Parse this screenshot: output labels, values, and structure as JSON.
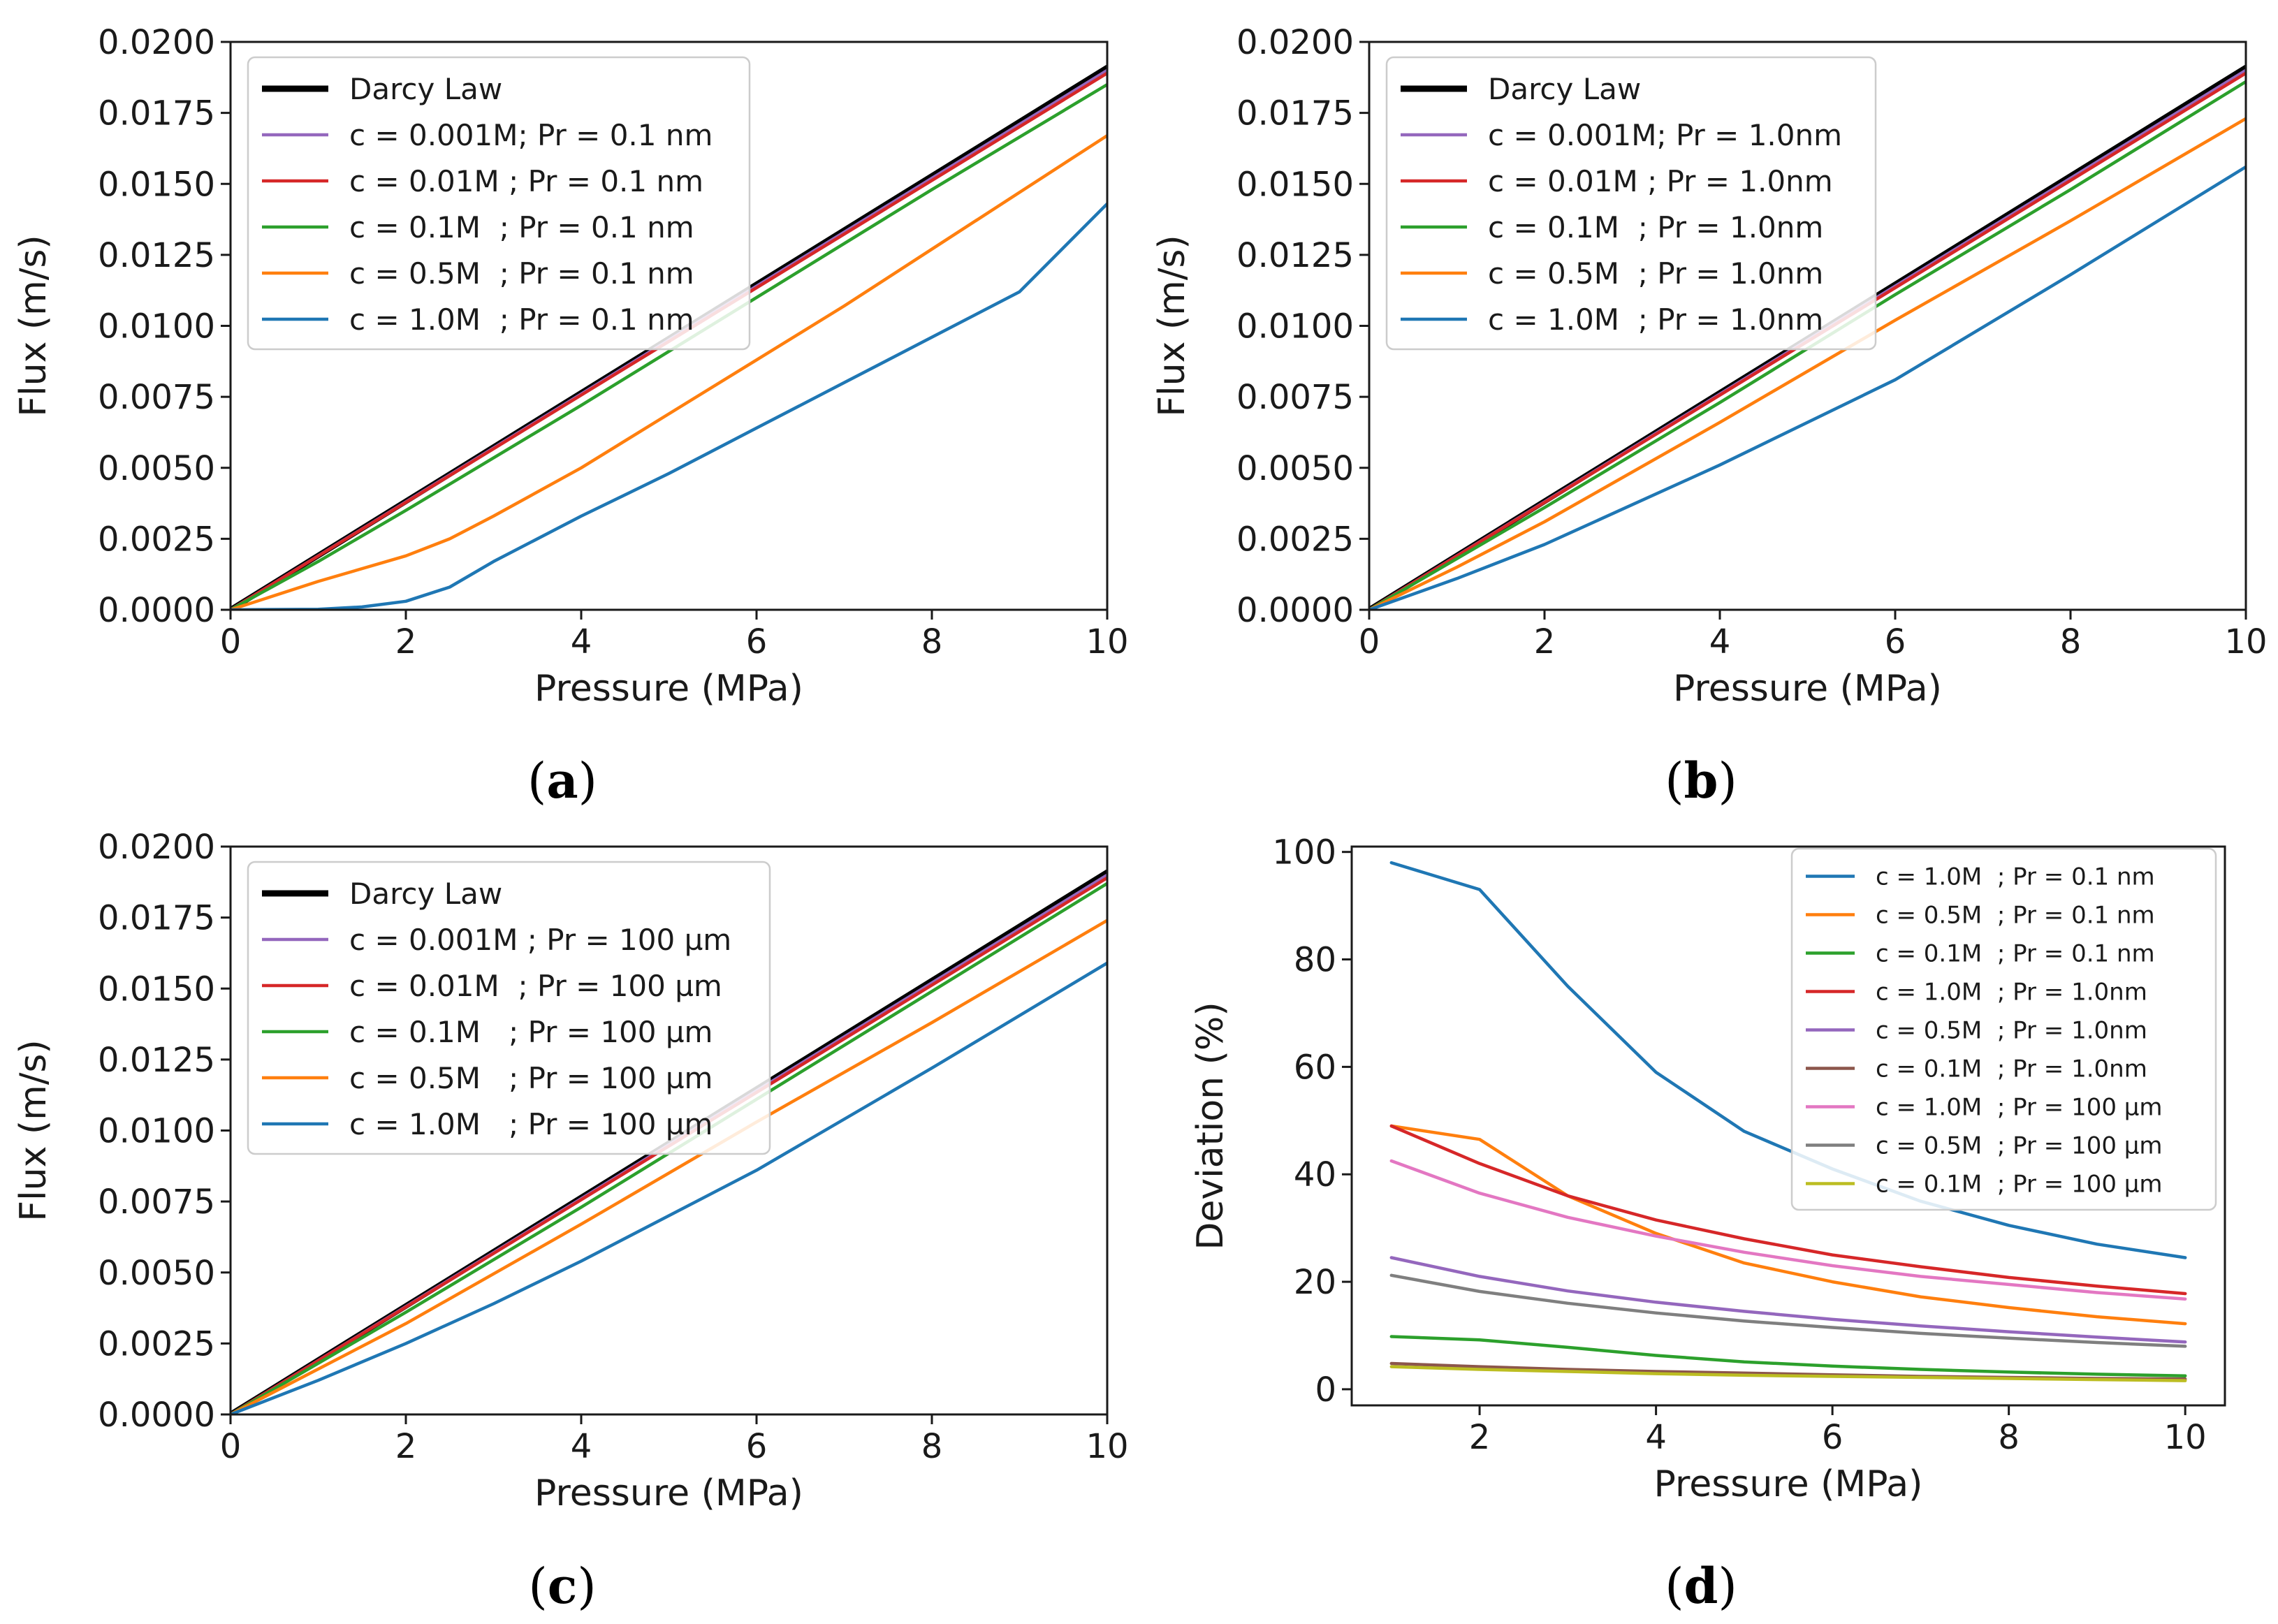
{
  "chart_data": [
    {
      "id": "a",
      "panel_label": "(a)",
      "type": "line",
      "xlabel": "Pressure (MPa)",
      "ylabel": "Flux (m/s)",
      "xlim": [
        0,
        10
      ],
      "ylim": [
        0,
        0.02
      ],
      "xticks": [
        0,
        2,
        4,
        6,
        8,
        10
      ],
      "xtick_labels": [
        "0",
        "2",
        "4",
        "6",
        "8",
        "10"
      ],
      "yticks": [
        0,
        0.0025,
        0.005,
        0.0075,
        0.01,
        0.0125,
        0.015,
        0.0175,
        0.02
      ],
      "ytick_labels": [
        "0.0000",
        "0.0025",
        "0.0050",
        "0.0075",
        "0.0100",
        "0.0125",
        "0.0150",
        "0.0175",
        "0.0200"
      ],
      "legend_position": "top-left",
      "series": [
        {
          "name": "Darcy Law",
          "color": "#000000",
          "bold": true,
          "x": [
            0,
            10
          ],
          "y": [
            0,
            0.0191
          ]
        },
        {
          "name": "c = 0.001M; Pr = 0.1 nm",
          "color": "#9467bd",
          "x": [
            0,
            10
          ],
          "y": [
            0,
            0.019
          ]
        },
        {
          "name": "c = 0.01M ; Pr = 0.1 nm",
          "color": "#d62728",
          "x": [
            0,
            10
          ],
          "y": [
            0,
            0.0189
          ]
        },
        {
          "name": "c = 0.1M  ; Pr = 0.1 nm",
          "color": "#2ca02c",
          "x": [
            0,
            1,
            2,
            4,
            6,
            8,
            10
          ],
          "y": [
            0,
            0.0017,
            0.0035,
            0.0072,
            0.011,
            0.0148,
            0.0185
          ]
        },
        {
          "name": "c = 0.5M  ; Pr = 0.1 nm",
          "color": "#ff7f0e",
          "x": [
            0,
            1,
            2,
            2.5,
            3,
            4,
            5,
            6,
            7,
            8,
            9,
            10
          ],
          "y": [
            0,
            0.001,
            0.0019,
            0.0025,
            0.0033,
            0.005,
            0.0069,
            0.0088,
            0.0107,
            0.0127,
            0.0147,
            0.0167
          ]
        },
        {
          "name": "c = 1.0M  ; Pr = 0.1 nm",
          "color": "#1f77b4",
          "x": [
            0,
            1,
            1.5,
            2,
            2.5,
            3,
            4,
            5,
            6,
            7,
            8,
            9,
            10
          ],
          "y": [
            0,
            2e-05,
            0.0001,
            0.0003,
            0.0008,
            0.0017,
            0.0033,
            0.0048,
            0.0064,
            0.008,
            0.0096,
            0.0112,
            0.0143
          ]
        }
      ]
    },
    {
      "id": "b",
      "panel_label": "(b)",
      "type": "line",
      "xlabel": "Pressure (MPa)",
      "ylabel": "Flux (m/s)",
      "xlim": [
        0,
        10
      ],
      "ylim": [
        0,
        0.02
      ],
      "xticks": [
        0,
        2,
        4,
        6,
        8,
        10
      ],
      "xtick_labels": [
        "0",
        "2",
        "4",
        "6",
        "8",
        "10"
      ],
      "yticks": [
        0,
        0.0025,
        0.005,
        0.0075,
        0.01,
        0.0125,
        0.015,
        0.0175,
        0.02
      ],
      "ytick_labels": [
        "0.0000",
        "0.0025",
        "0.0050",
        "0.0075",
        "0.0100",
        "0.0125",
        "0.0150",
        "0.0175",
        "0.0200"
      ],
      "legend_position": "top-left",
      "series": [
        {
          "name": "Darcy Law",
          "color": "#000000",
          "bold": true,
          "x": [
            0,
            10
          ],
          "y": [
            0,
            0.0191
          ]
        },
        {
          "name": "c = 0.001M; Pr = 1.0nm",
          "color": "#9467bd",
          "x": [
            0,
            10
          ],
          "y": [
            0,
            0.019
          ]
        },
        {
          "name": "c = 0.01M ; Pr = 1.0nm",
          "color": "#d62728",
          "x": [
            0,
            10
          ],
          "y": [
            0,
            0.0189
          ]
        },
        {
          "name": "c = 0.1M  ; Pr = 1.0nm",
          "color": "#2ca02c",
          "x": [
            0,
            2,
            4,
            6,
            8,
            10
          ],
          "y": [
            0,
            0.0036,
            0.0073,
            0.0111,
            0.0148,
            0.0186
          ]
        },
        {
          "name": "c = 0.5M  ; Pr = 1.0nm",
          "color": "#ff7f0e",
          "x": [
            0,
            1,
            2,
            4,
            6,
            8,
            10
          ],
          "y": [
            0,
            0.0015,
            0.0031,
            0.0066,
            0.0102,
            0.0137,
            0.0173
          ]
        },
        {
          "name": "c = 1.0M  ; Pr = 1.0nm",
          "color": "#1f77b4",
          "x": [
            0,
            1,
            2,
            3,
            4,
            6,
            8,
            10
          ],
          "y": [
            0,
            0.0011,
            0.0023,
            0.0037,
            0.0051,
            0.0081,
            0.0118,
            0.0156
          ]
        }
      ]
    },
    {
      "id": "c",
      "panel_label": "(c)",
      "type": "line",
      "xlabel": "Pressure (MPa)",
      "ylabel": "Flux (m/s)",
      "xlim": [
        0,
        10
      ],
      "ylim": [
        0,
        0.02
      ],
      "xticks": [
        0,
        2,
        4,
        6,
        8,
        10
      ],
      "xtick_labels": [
        "0",
        "2",
        "4",
        "6",
        "8",
        "10"
      ],
      "yticks": [
        0,
        0.0025,
        0.005,
        0.0075,
        0.01,
        0.0125,
        0.015,
        0.0175,
        0.02
      ],
      "ytick_labels": [
        "0.0000",
        "0.0025",
        "0.0050",
        "0.0075",
        "0.0100",
        "0.0125",
        "0.0150",
        "0.0175",
        "0.0200"
      ],
      "legend_position": "top-left",
      "series": [
        {
          "name": "Darcy Law",
          "color": "#000000",
          "bold": true,
          "x": [
            0,
            10
          ],
          "y": [
            0,
            0.0191
          ]
        },
        {
          "name": "c = 0.001M ; Pr = 100 µm",
          "color": "#9467bd",
          "x": [
            0,
            10
          ],
          "y": [
            0,
            0.019
          ]
        },
        {
          "name": "c = 0.01M  ; Pr = 100 µm",
          "color": "#d62728",
          "x": [
            0,
            10
          ],
          "y": [
            0,
            0.0189
          ]
        },
        {
          "name": "c = 0.1M   ; Pr = 100 µm",
          "color": "#2ca02c",
          "x": [
            0,
            2,
            4,
            6,
            8,
            10
          ],
          "y": [
            0,
            0.0036,
            0.0073,
            0.0111,
            0.0149,
            0.0187
          ]
        },
        {
          "name": "c = 0.5M   ; Pr = 100 µm",
          "color": "#ff7f0e",
          "x": [
            0,
            1,
            2,
            4,
            6,
            8,
            10
          ],
          "y": [
            0,
            0.0016,
            0.0032,
            0.0067,
            0.0103,
            0.0138,
            0.0174
          ]
        },
        {
          "name": "c = 1.0M   ; Pr = 100 µm",
          "color": "#1f77b4",
          "x": [
            0,
            1,
            2,
            3,
            4,
            6,
            8,
            10
          ],
          "y": [
            0,
            0.0012,
            0.0025,
            0.0039,
            0.0054,
            0.0086,
            0.0122,
            0.0159
          ]
        }
      ]
    },
    {
      "id": "d",
      "panel_label": "(d)",
      "type": "line",
      "xlabel": "Pressure (MPa)",
      "ylabel": "Deviation (%)",
      "xlim": [
        0.55,
        10.45
      ],
      "ylim": [
        -3,
        101
      ],
      "xticks": [
        2,
        4,
        6,
        8,
        10
      ],
      "xtick_labels": [
        "2",
        "4",
        "6",
        "8",
        "10"
      ],
      "yticks": [
        0,
        20,
        40,
        60,
        80,
        100
      ],
      "ytick_labels": [
        "0",
        "20",
        "40",
        "60",
        "80",
        "100"
      ],
      "legend_position": "top-right",
      "series": [
        {
          "name": "c = 1.0M  ; Pr = 0.1 nm",
          "color": "#1f77b4",
          "x": [
            1,
            2,
            3,
            4,
            5,
            6,
            7,
            8,
            9,
            10
          ],
          "y": [
            98,
            93,
            75,
            59,
            48,
            41,
            35,
            30.5,
            27,
            24.5
          ]
        },
        {
          "name": "c = 0.5M  ; Pr = 0.1 nm",
          "color": "#ff7f0e",
          "x": [
            1,
            2,
            3,
            4,
            5,
            6,
            7,
            8,
            9,
            10
          ],
          "y": [
            49,
            46.5,
            36,
            29,
            23.5,
            20,
            17.2,
            15.2,
            13.5,
            12.2
          ]
        },
        {
          "name": "c = 0.1M  ; Pr = 0.1 nm",
          "color": "#2ca02c",
          "x": [
            1,
            2,
            3,
            4,
            5,
            6,
            7,
            8,
            9,
            10
          ],
          "y": [
            9.8,
            9.2,
            7.8,
            6.3,
            5.1,
            4.3,
            3.7,
            3.2,
            2.8,
            2.5
          ]
        },
        {
          "name": "c = 1.0M  ; Pr = 1.0nm",
          "color": "#d62728",
          "x": [
            1,
            2,
            3,
            4,
            5,
            6,
            7,
            8,
            9,
            10
          ],
          "y": [
            49,
            42,
            36,
            31.5,
            28,
            25,
            22.8,
            20.8,
            19.2,
            17.8
          ]
        },
        {
          "name": "c = 0.5M  ; Pr = 1.0nm",
          "color": "#9467bd",
          "x": [
            1,
            2,
            3,
            4,
            5,
            6,
            7,
            8,
            9,
            10
          ],
          "y": [
            24.5,
            21,
            18.3,
            16.2,
            14.5,
            13,
            11.8,
            10.7,
            9.7,
            8.8
          ]
        },
        {
          "name": "c = 0.1M  ; Pr = 1.0nm",
          "color": "#8c564b",
          "x": [
            1,
            2,
            3,
            4,
            5,
            6,
            7,
            8,
            9,
            10
          ],
          "y": [
            4.8,
            4.2,
            3.7,
            3.3,
            3,
            2.7,
            2.4,
            2.2,
            2,
            1.9
          ]
        },
        {
          "name": "c = 1.0M  ; Pr = 100 µm",
          "color": "#e377c2",
          "x": [
            1,
            2,
            3,
            4,
            5,
            6,
            7,
            8,
            9,
            10
          ],
          "y": [
            42.5,
            36.5,
            32,
            28.5,
            25.5,
            23,
            21,
            19.5,
            18,
            16.8
          ]
        },
        {
          "name": "c = 0.5M  ; Pr = 100 µm",
          "color": "#7f7f7f",
          "x": [
            1,
            2,
            3,
            4,
            5,
            6,
            7,
            8,
            9,
            10
          ],
          "y": [
            21.2,
            18.2,
            16,
            14.2,
            12.7,
            11.5,
            10.4,
            9.5,
            8.7,
            8
          ]
        },
        {
          "name": "c = 0.1M  ; Pr = 100 µm",
          "color": "#bcbd22",
          "x": [
            1,
            2,
            3,
            4,
            5,
            6,
            7,
            8,
            9,
            10
          ],
          "y": [
            4.2,
            3.7,
            3.3,
            2.9,
            2.6,
            2.4,
            2.2,
            2,
            1.8,
            1.6
          ]
        }
      ]
    }
  ]
}
